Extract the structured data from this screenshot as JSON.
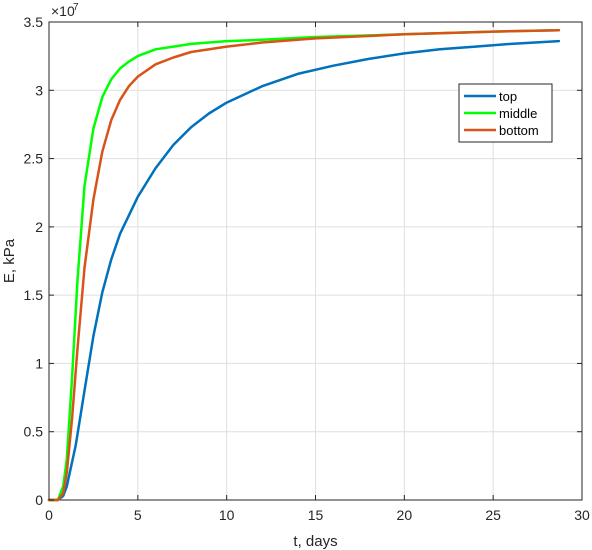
{
  "chart_data": {
    "type": "line",
    "xlabel": "t, days",
    "ylabel": "E, kPa",
    "exponent_label": "×10",
    "exponent_power": "7",
    "xlim": [
      0,
      30
    ],
    "ylim": [
      0,
      3.5
    ],
    "y_scale_factor": 10000000,
    "xticks": [
      0,
      5,
      10,
      15,
      20,
      25,
      30
    ],
    "yticks": [
      0,
      0.5,
      1,
      1.5,
      2,
      2.5,
      3,
      3.5
    ],
    "xtick_labels": [
      "0",
      "5",
      "10",
      "15",
      "20",
      "25",
      "30"
    ],
    "ytick_labels": [
      "0",
      "0.5",
      "1",
      "1.5",
      "2",
      "2.5",
      "3",
      "3.5"
    ],
    "grid": true,
    "legend_position": "upper-right",
    "series": [
      {
        "name": "top",
        "color": "#0072BD",
        "x": [
          0,
          0.5,
          0.8,
          1,
          1.5,
          2,
          2.5,
          3,
          3.5,
          4,
          5,
          6,
          7,
          8,
          9,
          10,
          12,
          14,
          16,
          18,
          20,
          22,
          24,
          26,
          28.7
        ],
        "y": [
          0,
          0,
          0.03,
          0.1,
          0.4,
          0.8,
          1.2,
          1.52,
          1.76,
          1.95,
          2.22,
          2.43,
          2.6,
          2.73,
          2.83,
          2.91,
          3.03,
          3.12,
          3.18,
          3.23,
          3.27,
          3.3,
          3.32,
          3.34,
          3.36
        ]
      },
      {
        "name": "middle",
        "color": "#00FF00",
        "x": [
          0,
          0.5,
          0.8,
          1,
          1.3,
          1.6,
          2,
          2.5,
          3,
          3.5,
          4,
          4.5,
          5,
          6,
          7,
          8,
          10,
          12,
          15,
          20,
          25,
          28.7
        ],
        "y": [
          0,
          0,
          0.1,
          0.3,
          0.9,
          1.6,
          2.3,
          2.72,
          2.95,
          3.08,
          3.16,
          3.21,
          3.25,
          3.3,
          3.32,
          3.34,
          3.36,
          3.37,
          3.39,
          3.41,
          3.43,
          3.44
        ]
      },
      {
        "name": "bottom",
        "color": "#D95319",
        "x": [
          0,
          0.5,
          0.8,
          1,
          1.3,
          1.6,
          2,
          2.5,
          3,
          3.5,
          4,
          4.5,
          5,
          6,
          7,
          8,
          10,
          12,
          15,
          20,
          25,
          28.7
        ],
        "y": [
          0,
          0,
          0.05,
          0.2,
          0.6,
          1.1,
          1.7,
          2.2,
          2.55,
          2.78,
          2.93,
          3.03,
          3.1,
          3.19,
          3.24,
          3.28,
          3.32,
          3.35,
          3.38,
          3.41,
          3.43,
          3.44
        ]
      }
    ]
  }
}
